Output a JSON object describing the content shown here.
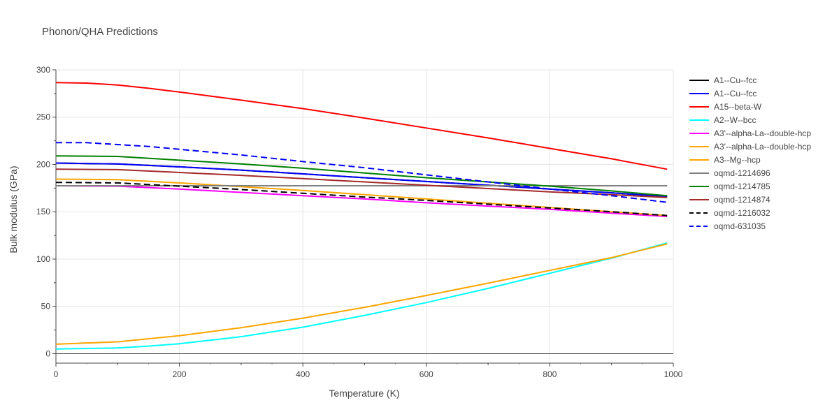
{
  "chart_data": {
    "type": "line",
    "title": "Phonon/QHA Predictions",
    "xlabel": "Temperature (K)",
    "ylabel": "Bulk modulus (GPa)",
    "xlim": [
      0,
      1000
    ],
    "ylim": [
      -10,
      300
    ],
    "xticks": [
      0,
      200,
      400,
      600,
      800,
      1000
    ],
    "yticks": [
      0,
      50,
      100,
      150,
      200,
      250,
      300
    ],
    "grid": true,
    "legend_position": "right",
    "series": [
      {
        "name": "A1--Cu--fcc",
        "color": "#000000",
        "dash": "solid",
        "x": [
          0,
          100,
          200,
          300,
          400,
          500,
          600,
          700,
          800,
          900,
          990
        ],
        "y": [
          201.5,
          200.5,
          197.5,
          194,
          190,
          186,
          182,
          178,
          174,
          170,
          166
        ]
      },
      {
        "name": "A1--Cu--fcc",
        "color": "#0000ff",
        "dash": "solid",
        "x": [
          0,
          100,
          200,
          300,
          400,
          500,
          600,
          700,
          800,
          900,
          990
        ],
        "y": [
          201.5,
          200.5,
          197.5,
          194,
          190,
          186,
          182,
          178,
          174,
          170,
          166
        ]
      },
      {
        "name": "A15--beta-W",
        "color": "#ff0000",
        "dash": "solid",
        "x": [
          0,
          50,
          100,
          150,
          200,
          300,
          400,
          500,
          600,
          700,
          800,
          900,
          990
        ],
        "y": [
          286.5,
          286,
          284,
          280.5,
          276.5,
          268,
          259,
          249,
          238.5,
          228,
          217,
          206,
          195
        ]
      },
      {
        "name": "A2--W--bcc",
        "color": "#00ffff",
        "dash": "solid",
        "x": [
          0,
          50,
          100,
          150,
          200,
          300,
          400,
          500,
          600,
          700,
          800,
          900,
          990
        ],
        "y": [
          5,
          5.5,
          6,
          8,
          10.5,
          18,
          28,
          40.5,
          54,
          69,
          85,
          101,
          117
        ]
      },
      {
        "name": "A3'--alpha-La--double-hcp",
        "color": "#ff00ff",
        "dash": "solid",
        "x": [
          0,
          100,
          200,
          300,
          400,
          500,
          600,
          700,
          800,
          900,
          990
        ],
        "y": [
          177.5,
          177,
          174,
          170.5,
          167,
          163.5,
          159.5,
          156,
          152.5,
          148.5,
          145
        ]
      },
      {
        "name": "A3'--alpha-La--double-hcp",
        "color": "#ffa500",
        "dash": "solid",
        "x": [
          0,
          100,
          200,
          300,
          400,
          500,
          600,
          700,
          800,
          900,
          990
        ],
        "y": [
          10,
          12.5,
          19,
          27.5,
          37.5,
          49,
          61.5,
          74.5,
          88,
          101.5,
          116
        ]
      },
      {
        "name": "A3--Mg--hcp",
        "color": "#ffa500",
        "dash": "solid",
        "x": [
          0,
          100,
          200,
          300,
          400,
          500,
          600,
          700,
          800,
          900,
          990
        ],
        "y": [
          184.5,
          184,
          180.5,
          176.5,
          172.5,
          168,
          163.5,
          159,
          154.5,
          150,
          146
        ]
      },
      {
        "name": "oqmd-1214696",
        "color": "#808080",
        "dash": "solid",
        "x": [
          0,
          990
        ],
        "y": [
          177.5,
          177.5
        ]
      },
      {
        "name": "oqmd-1214785",
        "color": "#008000",
        "dash": "solid",
        "x": [
          0,
          100,
          200,
          300,
          400,
          500,
          600,
          700,
          800,
          900,
          990
        ],
        "y": [
          209,
          208.5,
          204.5,
          200.5,
          196,
          191,
          186,
          181.5,
          177,
          172,
          167
        ]
      },
      {
        "name": "oqmd-1214874",
        "color": "#a52a2a",
        "dash": "solid",
        "x": [
          0,
          100,
          200,
          300,
          400,
          500,
          600,
          700,
          800,
          900,
          990
        ],
        "y": [
          195,
          194.5,
          191.5,
          188.5,
          185,
          181.5,
          178,
          174.5,
          171,
          168,
          165
        ]
      },
      {
        "name": "oqmd-1216032",
        "color": "#000000",
        "dash": "dash",
        "x": [
          0,
          100,
          200,
          300,
          400,
          500,
          600,
          700,
          800,
          900,
          990
        ],
        "y": [
          181,
          180.5,
          177,
          173.5,
          169.5,
          165.5,
          162,
          158,
          154,
          150,
          146
        ]
      },
      {
        "name": "oqmd-631035",
        "color": "#0000ff",
        "dash": "dash",
        "x": [
          0,
          50,
          100,
          150,
          200,
          300,
          400,
          500,
          600,
          700,
          800,
          900,
          990
        ],
        "y": [
          223,
          223,
          221,
          219,
          216,
          210,
          203,
          196.5,
          189,
          181.5,
          174,
          167,
          160
        ]
      }
    ]
  }
}
